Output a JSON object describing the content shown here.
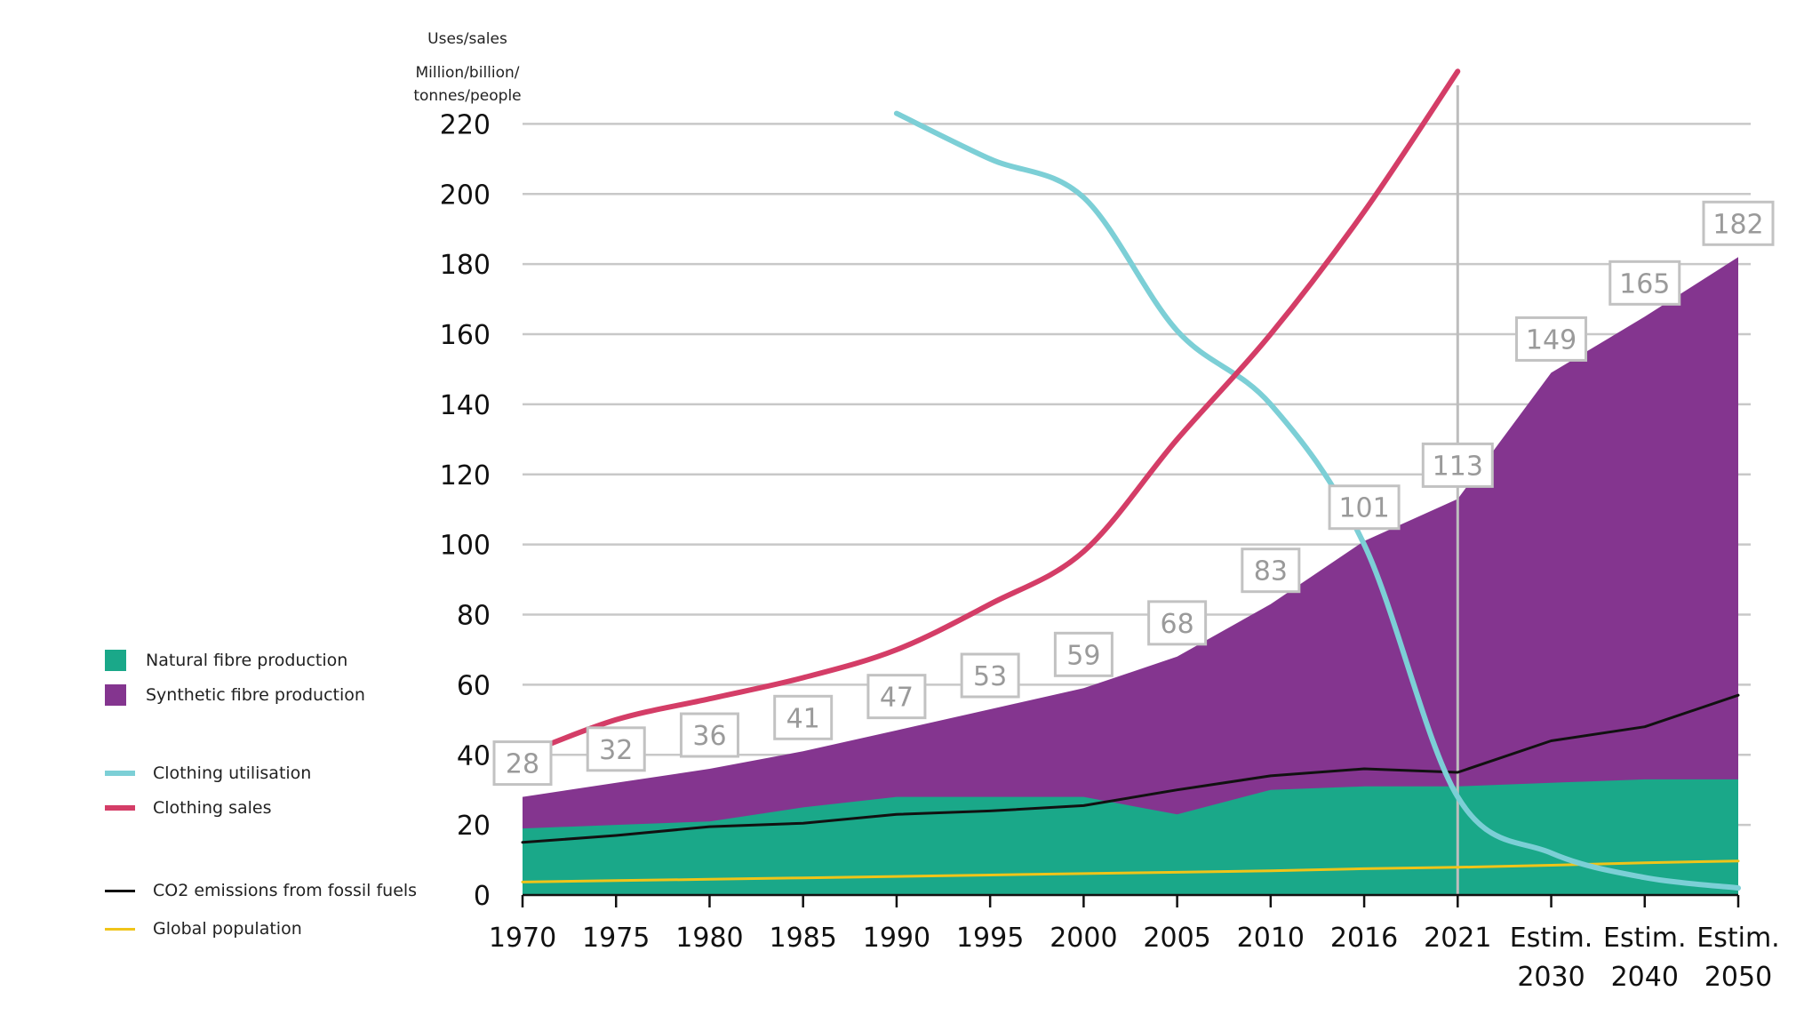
{
  "chart_data": {
    "type": "area",
    "ylabel_lines": [
      "Uses/sales",
      "Million/billion/",
      "tonnes/people"
    ],
    "categories": [
      [
        "1970"
      ],
      [
        "1975"
      ],
      [
        "1980"
      ],
      [
        "1985"
      ],
      [
        "1990"
      ],
      [
        "1995"
      ],
      [
        "2000"
      ],
      [
        "2005"
      ],
      [
        "2010"
      ],
      [
        "2016"
      ],
      [
        "2021"
      ],
      [
        "Estim.",
        "2030"
      ],
      [
        "Estim.",
        "2040"
      ],
      [
        "Estim.",
        "2050"
      ]
    ],
    "ylim": [
      0,
      230
    ],
    "yticks": [
      0,
      20,
      40,
      60,
      80,
      100,
      120,
      140,
      160,
      180,
      200,
      220
    ],
    "grid": true,
    "highlight_category": "2021",
    "series": [
      {
        "name": "Natural fibre production",
        "kind": "area",
        "color": "#1aa889",
        "values": [
          19,
          20,
          21,
          25,
          28,
          28,
          28,
          23,
          30,
          31,
          31,
          32,
          33,
          33
        ]
      },
      {
        "name": "Synthetic fibre production",
        "kind": "area",
        "color": "#84358f",
        "values": [
          28,
          32,
          36,
          41,
          47,
          53,
          59,
          68,
          83,
          101,
          113,
          149,
          165,
          182
        ]
      },
      {
        "name": "Clothing utilisation",
        "kind": "line",
        "color": "#7ccfd6",
        "values": [
          null,
          null,
          null,
          null,
          223,
          210,
          199,
          161,
          140,
          100,
          28,
          12,
          5,
          2
        ]
      },
      {
        "name": "Clothing sales",
        "kind": "line",
        "color": "#d43d67",
        "values": [
          40,
          50,
          56,
          62,
          70,
          83,
          98,
          130,
          160,
          195,
          235,
          null,
          null,
          null
        ]
      },
      {
        "name": "CO2 emissions from fossil fuels",
        "kind": "line",
        "color": "#111111",
        "values": [
          15,
          17,
          19.5,
          20.5,
          23,
          24,
          25.5,
          30,
          34,
          36,
          35,
          44,
          48,
          57
        ]
      },
      {
        "name": "Global population",
        "kind": "line",
        "color": "#f0c419",
        "values": [
          3.7,
          4.1,
          4.5,
          4.9,
          5.3,
          5.7,
          6.1,
          6.5,
          6.9,
          7.5,
          7.9,
          8.5,
          9.2,
          9.7
        ]
      }
    ],
    "data_labels": [
      {
        "category_index": 0,
        "value": 28,
        "text": "28"
      },
      {
        "category_index": 1,
        "value": 32,
        "text": "32"
      },
      {
        "category_index": 2,
        "value": 36,
        "text": "36"
      },
      {
        "category_index": 3,
        "value": 41,
        "text": "41"
      },
      {
        "category_index": 4,
        "value": 47,
        "text": "47"
      },
      {
        "category_index": 5,
        "value": 53,
        "text": "53"
      },
      {
        "category_index": 6,
        "value": 59,
        "text": "59"
      },
      {
        "category_index": 7,
        "value": 68,
        "text": "68"
      },
      {
        "category_index": 8,
        "value": 83,
        "text": "83"
      },
      {
        "category_index": 9,
        "value": 101,
        "text": "101"
      },
      {
        "category_index": 10,
        "value": 113,
        "text": "113"
      },
      {
        "category_index": 11,
        "value": 149,
        "text": "149"
      },
      {
        "category_index": 12,
        "value": 165,
        "text": "165"
      },
      {
        "category_index": 13,
        "value": 182,
        "text": "182"
      }
    ],
    "legend": {
      "placement": "left",
      "items": [
        {
          "label": "Natural fibre production",
          "marker": "square",
          "color": "#1aa889"
        },
        {
          "label": "Synthetic fibre production",
          "marker": "square",
          "color": "#84358f"
        },
        {
          "label": "Clothing utilisation",
          "marker": "line",
          "color": "#7ccfd6"
        },
        {
          "label": "Clothing sales",
          "marker": "line",
          "color": "#d43d67"
        },
        {
          "label": "CO2 emissions from fossil fuels",
          "marker": "thin-line",
          "color": "#111111"
        },
        {
          "label": "Global population",
          "marker": "thin-line",
          "color": "#f0c419"
        }
      ]
    }
  }
}
